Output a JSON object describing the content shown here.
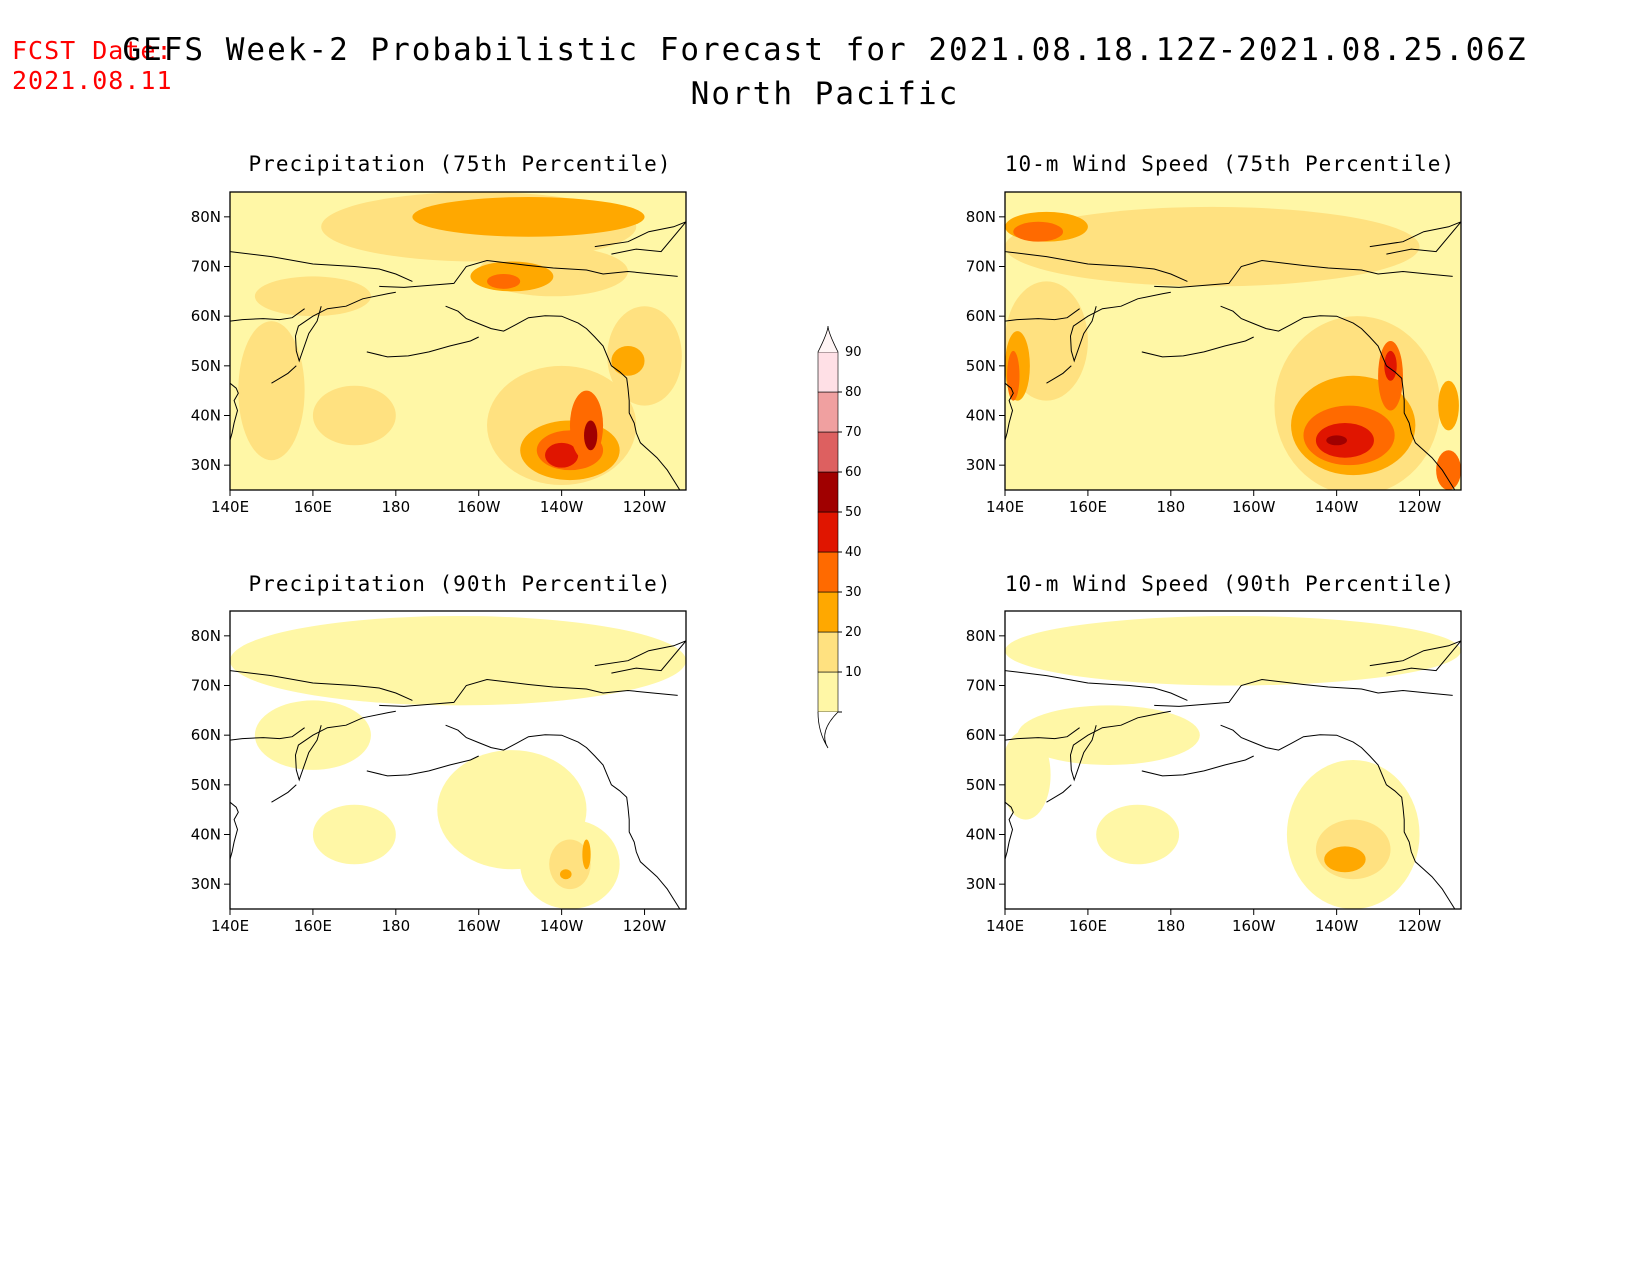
{
  "header": {
    "fcst_label": "FCST Date:",
    "fcst_date": "2021.08.11",
    "title": "GEFS Week-2 Probabilistic Forecast for 2021.08.18.12Z-2021.08.25.06Z",
    "subtitle": "North Pacific"
  },
  "colors": {
    "c10": "#fff7a6",
    "c20": "#ffe180",
    "c30": "#ffa800",
    "c40": "#ff6a00",
    "c50": "#e01500",
    "c60": "#a00000",
    "c70": "#dd6060",
    "c80": "#f0a0a0",
    "c90": "#ffe0e6",
    "coast": "#000000"
  },
  "axes": {
    "lat_labels": [
      "80N",
      "70N",
      "60N",
      "50N",
      "40N",
      "30N"
    ],
    "lon_labels": [
      "140E",
      "160E",
      "180",
      "160W",
      "140W",
      "120W"
    ]
  },
  "panels": [
    {
      "id": "precip75",
      "title": "Precipitation (75th Percentile)",
      "variable": "precipitation",
      "percentile": 75,
      "features": [
        {
          "level": 20,
          "lon": 200,
          "lat": 78,
          "rx": 38,
          "ry": 7
        },
        {
          "level": 30,
          "lon": 212,
          "lat": 80,
          "rx": 28,
          "ry": 4
        },
        {
          "level": 20,
          "lon": 218,
          "lat": 69,
          "rx": 18,
          "ry": 5
        },
        {
          "level": 30,
          "lon": 208,
          "lat": 68,
          "rx": 10,
          "ry": 3
        },
        {
          "level": 40,
          "lon": 206,
          "lat": 67,
          "rx": 4,
          "ry": 1.5
        },
        {
          "level": 20,
          "lon": 160,
          "lat": 64,
          "rx": 14,
          "ry": 4
        },
        {
          "level": 20,
          "lon": 150,
          "lat": 45,
          "rx": 8,
          "ry": 14
        },
        {
          "level": 20,
          "lon": 170,
          "lat": 40,
          "rx": 10,
          "ry": 6
        },
        {
          "level": 20,
          "lon": 220,
          "lat": 38,
          "rx": 18,
          "ry": 12
        },
        {
          "level": 30,
          "lon": 222,
          "lat": 33,
          "rx": 12,
          "ry": 6
        },
        {
          "level": 40,
          "lon": 222,
          "lat": 33,
          "rx": 8,
          "ry": 4
        },
        {
          "level": 50,
          "lon": 220,
          "lat": 32,
          "rx": 4,
          "ry": 2.5
        },
        {
          "level": 40,
          "lon": 226,
          "lat": 38,
          "rx": 4,
          "ry": 7
        },
        {
          "level": 60,
          "lon": 227,
          "lat": 36,
          "rx": 1.6,
          "ry": 3
        },
        {
          "level": 20,
          "lon": 240,
          "lat": 52,
          "rx": 9,
          "ry": 10
        },
        {
          "level": 30,
          "lon": 236,
          "lat": 51,
          "rx": 4,
          "ry": 3
        }
      ]
    },
    {
      "id": "wind75",
      "title": "10-m Wind Speed (75th Percentile)",
      "variable": "wind",
      "percentile": 75,
      "features": [
        {
          "level": 20,
          "lon": 190,
          "lat": 74,
          "rx": 50,
          "ry": 8
        },
        {
          "level": 30,
          "lon": 150,
          "lat": 78,
          "rx": 10,
          "ry": 3
        },
        {
          "level": 40,
          "lon": 148,
          "lat": 77,
          "rx": 6,
          "ry": 2
        },
        {
          "level": 20,
          "lon": 150,
          "lat": 55,
          "rx": 10,
          "ry": 12
        },
        {
          "level": 30,
          "lon": 143,
          "lat": 50,
          "rx": 3,
          "ry": 7
        },
        {
          "level": 40,
          "lon": 142,
          "lat": 48,
          "rx": 1.5,
          "ry": 5
        },
        {
          "level": 20,
          "lon": 225,
          "lat": 42,
          "rx": 20,
          "ry": 18
        },
        {
          "level": 30,
          "lon": 224,
          "lat": 38,
          "rx": 15,
          "ry": 10
        },
        {
          "level": 40,
          "lon": 223,
          "lat": 36,
          "rx": 11,
          "ry": 6
        },
        {
          "level": 50,
          "lon": 222,
          "lat": 35,
          "rx": 7,
          "ry": 3.5
        },
        {
          "level": 60,
          "lon": 220,
          "lat": 35,
          "rx": 2.5,
          "ry": 1
        },
        {
          "level": 40,
          "lon": 233,
          "lat": 48,
          "rx": 3,
          "ry": 7
        },
        {
          "level": 50,
          "lon": 233,
          "lat": 50,
          "rx": 1.5,
          "ry": 3
        },
        {
          "level": 40,
          "lon": 247,
          "lat": 29,
          "rx": 3,
          "ry": 4
        },
        {
          "level": 30,
          "lon": 247,
          "lat": 42,
          "rx": 2.5,
          "ry": 5
        }
      ]
    },
    {
      "id": "precip90",
      "title": "Precipitation (90th Percentile)",
      "variable": "precipitation",
      "percentile": 90,
      "features": [
        {
          "level": 10,
          "lon": 195,
          "lat": 75,
          "rx": 55,
          "ry": 9
        },
        {
          "level": 10,
          "lon": 160,
          "lat": 60,
          "rx": 14,
          "ry": 7
        },
        {
          "level": 10,
          "lon": 170,
          "lat": 40,
          "rx": 10,
          "ry": 6
        },
        {
          "level": 10,
          "lon": 208,
          "lat": 45,
          "rx": 18,
          "ry": 12
        },
        {
          "level": 10,
          "lon": 222,
          "lat": 34,
          "rx": 12,
          "ry": 9
        },
        {
          "level": 20,
          "lon": 222,
          "lat": 34,
          "rx": 5,
          "ry": 5
        },
        {
          "level": 30,
          "lon": 226,
          "lat": 36,
          "rx": 1,
          "ry": 3
        },
        {
          "level": 30,
          "lon": 221,
          "lat": 32,
          "rx": 1.4,
          "ry": 1
        }
      ]
    },
    {
      "id": "wind90",
      "title": "10-m Wind Speed (90th Percentile)",
      "variable": "wind",
      "percentile": 90,
      "features": [
        {
          "level": 10,
          "lon": 195,
          "lat": 77,
          "rx": 55,
          "ry": 7
        },
        {
          "level": 10,
          "lon": 165,
          "lat": 60,
          "rx": 22,
          "ry": 6
        },
        {
          "level": 10,
          "lon": 172,
          "lat": 40,
          "rx": 10,
          "ry": 6
        },
        {
          "level": 10,
          "lon": 224,
          "lat": 40,
          "rx": 16,
          "ry": 15
        },
        {
          "level": 20,
          "lon": 224,
          "lat": 37,
          "rx": 9,
          "ry": 6
        },
        {
          "level": 30,
          "lon": 222,
          "lat": 35,
          "rx": 5,
          "ry": 2.6
        },
        {
          "level": 10,
          "lon": 145,
          "lat": 52,
          "rx": 6,
          "ry": 9
        }
      ]
    }
  ],
  "colorbar": {
    "levels": [
      10,
      20,
      30,
      40,
      50,
      60,
      70,
      80,
      90
    ],
    "labels": [
      "10",
      "20",
      "30",
      "40",
      "50",
      "60",
      "70",
      "80",
      "90"
    ]
  }
}
